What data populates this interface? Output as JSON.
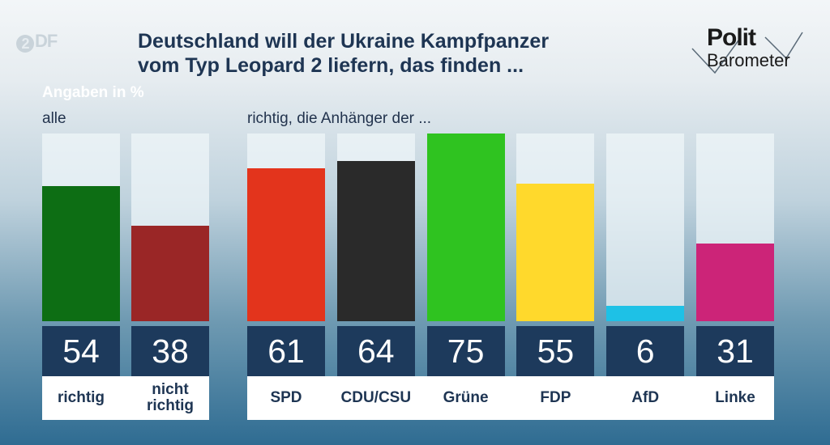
{
  "broadcaster_logo": "2DF",
  "title_lines": [
    "Deutschland will der Ukraine Kampfpanzer",
    "vom Typ Leopard 2 liefern, das finden ..."
  ],
  "brand": {
    "line1": "Polit",
    "line2": "Barometer"
  },
  "chart_data": [
    {
      "type": "bar",
      "title": "Deutschland will der Ukraine Kampfpanzer vom Typ Leopard 2 liefern, das finden ...",
      "unit_label": "Angaben in %",
      "group_label": "alle",
      "categories": [
        "richtig",
        "nicht richtig"
      ],
      "category_lines": [
        [
          "richtig"
        ],
        [
          "nicht",
          "richtig"
        ]
      ],
      "values": [
        54,
        38
      ],
      "colors": [
        "#0d6e14",
        "#9a2626"
      ],
      "ylim": [
        0,
        75
      ]
    },
    {
      "type": "bar",
      "group_label": "richtig, die Anhänger der ...",
      "categories": [
        "SPD",
        "CDU/CSU",
        "Grüne",
        "FDP",
        "AfD",
        "Linke"
      ],
      "category_lines": [
        [
          "SPD"
        ],
        [
          "CDU/CSU"
        ],
        [
          "Grüne"
        ],
        [
          "FDP"
        ],
        [
          "AfD"
        ],
        [
          "Linke"
        ]
      ],
      "values": [
        61,
        64,
        75,
        55,
        6,
        31
      ],
      "colors": [
        "#e3341c",
        "#2a2a2a",
        "#2fc320",
        "#ffd92c",
        "#1ec1e6",
        "#cc2478"
      ],
      "ylim": [
        0,
        75
      ]
    }
  ]
}
